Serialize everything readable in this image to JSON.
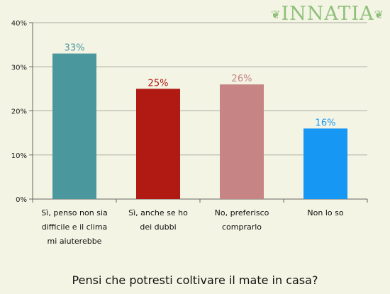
{
  "brand": {
    "logo_text": "INNATIA",
    "accent": "#8fc07a"
  },
  "chart_data": {
    "type": "bar",
    "title": "Pensi che potresti coltivare il mate in casa?",
    "categories": [
      "Sì, penso non sia difficile e il clima mi aiuterebbe",
      "Sì, anche se ho dei dubbi",
      "No, preferisco comprarlo",
      "Non lo so"
    ],
    "values": [
      33,
      25,
      26,
      16
    ],
    "value_labels": [
      "33%",
      "25%",
      "26%",
      "16%"
    ],
    "colors": [
      "#4a979d",
      "#b01a12",
      "#c68584",
      "#1597f3"
    ],
    "ylim": [
      0,
      40
    ],
    "yticks": [
      "0%",
      "10%",
      "20%",
      "30%",
      "40%"
    ],
    "grid": true,
    "legend": "none"
  }
}
